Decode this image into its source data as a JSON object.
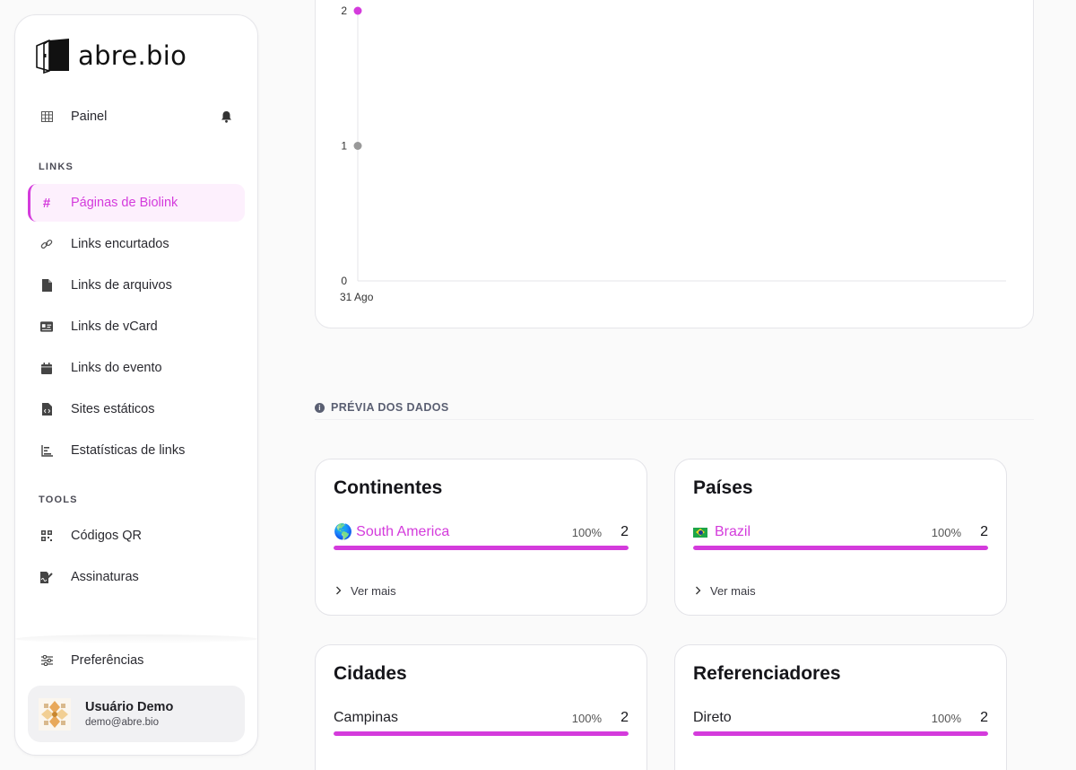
{
  "brand": {
    "name": "abre.bio"
  },
  "sidebar": {
    "top_item": {
      "label": "Painel",
      "icon": "grid-icon"
    },
    "sections": [
      {
        "label": "LINKS"
      },
      {
        "label": "TOOLS"
      }
    ],
    "links_items": [
      {
        "label": "Páginas de Biolink",
        "icon": "hash-icon",
        "active": true
      },
      {
        "label": "Links encurtados",
        "icon": "link-icon"
      },
      {
        "label": "Links de arquivos",
        "icon": "file-icon"
      },
      {
        "label": "Links de vCard",
        "icon": "id-card-icon"
      },
      {
        "label": "Links do evento",
        "icon": "calendar-icon"
      },
      {
        "label": "Sites estáticos",
        "icon": "file-code-icon"
      },
      {
        "label": "Estatísticas de links",
        "icon": "bar-chart-icon"
      }
    ],
    "tools_items": [
      {
        "label": "Códigos QR",
        "icon": "qrcode-icon"
      },
      {
        "label": "Assinaturas",
        "icon": "signature-icon"
      }
    ],
    "preferences": {
      "label": "Preferências",
      "icon": "sliders-icon"
    },
    "user": {
      "name": "Usuário Demo",
      "email": "demo@abre.bio"
    }
  },
  "chart_data": {
    "type": "line",
    "x": [
      "31 Ago"
    ],
    "series": [
      {
        "values": [
          2
        ],
        "color": "#d43bdc"
      },
      {
        "values": [
          1
        ],
        "color": "#999999"
      }
    ],
    "yticks": [
      "0",
      "1",
      "2"
    ],
    "ylim": [
      0,
      2
    ],
    "xlabel": "",
    "ylabel": ""
  },
  "preview": {
    "label": "PRÉVIA DOS DADOS"
  },
  "cards": [
    {
      "title": "Continentes",
      "name": "South America",
      "prefix": "🌎",
      "pct": "100%",
      "count": "2",
      "fill": 1.0,
      "more": "Ver mais",
      "linked": true
    },
    {
      "title": "Países",
      "name": "Brazil",
      "prefix": "flag-br",
      "pct": "100%",
      "count": "2",
      "fill": 1.0,
      "more": "Ver mais",
      "linked": true
    },
    {
      "title": "Cidades",
      "name": "Campinas",
      "pct": "100%",
      "count": "2",
      "fill": 1.0,
      "linked": false
    },
    {
      "title": "Referenciadores",
      "name": "Direto",
      "pct": "100%",
      "count": "2",
      "fill": 1.0,
      "linked": false
    }
  ],
  "colors": {
    "accent": "#d43bdc",
    "active_bg": "#fdf0fd",
    "muted_point": "#999999"
  }
}
